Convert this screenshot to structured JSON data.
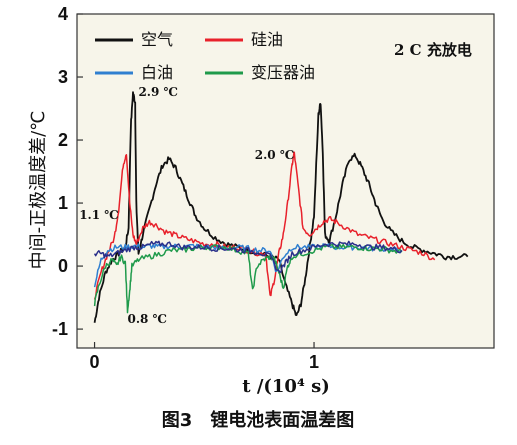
{
  "chart_data": {
    "type": "line",
    "xlabel": "t /(10⁴ s)",
    "ylabel": "中间-正极温度差/℃",
    "xlim": [
      -0.08,
      1.82
    ],
    "ylim": [
      -1.3,
      4.0
    ],
    "x_ticks": [
      {
        "value": 0,
        "label": "0"
      },
      {
        "value": 1,
        "label": "1"
      }
    ],
    "y_ticks": [
      {
        "value": -1,
        "label": "-1"
      },
      {
        "value": 0,
        "label": "0"
      },
      {
        "value": 1,
        "label": "1"
      },
      {
        "value": 2,
        "label": "2"
      },
      {
        "value": 3,
        "label": "3"
      },
      {
        "value": 4,
        "label": "4"
      }
    ],
    "grid": false,
    "legend_position": "top-left",
    "note": "2 C 充放电",
    "caption": "图3　锂电池表面温差图",
    "colors": {
      "background": "#f7f5ea",
      "black": "#111111",
      "red": "#e8212b",
      "blue": "#2f7fd0",
      "green": "#1f9a4b",
      "navy": "#2a2f8a"
    },
    "annotations": [
      {
        "text": "2.9 ℃",
        "x": 0.2,
        "y": 2.7
      },
      {
        "text": "2.0 ℃",
        "x": 0.73,
        "y": 1.7
      },
      {
        "text": "1.1 ℃",
        "x": -0.07,
        "y": 0.75
      },
      {
        "text": "0.8 ℃",
        "x": 0.15,
        "y": -0.9
      }
    ],
    "series": [
      {
        "name": "空气",
        "color": "#111111",
        "points": [
          [
            0,
            -0.9
          ],
          [
            0.02,
            -0.5
          ],
          [
            0.05,
            -0.1
          ],
          [
            0.08,
            0.1
          ],
          [
            0.11,
            0.2
          ],
          [
            0.14,
            0.3
          ],
          [
            0.155,
            0.6
          ],
          [
            0.165,
            2.2
          ],
          [
            0.175,
            2.75
          ],
          [
            0.185,
            2.6
          ],
          [
            0.19,
            1.0
          ],
          [
            0.2,
            0.2
          ],
          [
            0.22,
            0.5
          ],
          [
            0.25,
            0.9
          ],
          [
            0.28,
            1.3
          ],
          [
            0.31,
            1.6
          ],
          [
            0.34,
            1.7
          ],
          [
            0.37,
            1.55
          ],
          [
            0.4,
            1.3
          ],
          [
            0.43,
            1.05
          ],
          [
            0.46,
            0.8
          ],
          [
            0.5,
            0.6
          ],
          [
            0.55,
            0.45
          ],
          [
            0.6,
            0.35
          ],
          [
            0.65,
            0.3
          ],
          [
            0.7,
            0.25
          ],
          [
            0.75,
            0.2
          ],
          [
            0.8,
            0.15
          ],
          [
            0.84,
            0.1
          ],
          [
            0.87,
            -0.3
          ],
          [
            0.9,
            -0.6
          ],
          [
            0.92,
            -0.8
          ],
          [
            0.94,
            -0.6
          ],
          [
            0.96,
            -0.2
          ],
          [
            0.98,
            0.3
          ],
          [
            1.0,
            0.8
          ],
          [
            1.02,
            2.4
          ],
          [
            1.03,
            2.6
          ],
          [
            1.04,
            1.8
          ],
          [
            1.05,
            0.5
          ],
          [
            1.07,
            0.4
          ],
          [
            1.1,
            0.8
          ],
          [
            1.13,
            1.3
          ],
          [
            1.16,
            1.7
          ],
          [
            1.19,
            1.75
          ],
          [
            1.22,
            1.55
          ],
          [
            1.25,
            1.3
          ],
          [
            1.28,
            1.0
          ],
          [
            1.31,
            0.75
          ],
          [
            1.35,
            0.55
          ],
          [
            1.4,
            0.4
          ],
          [
            1.45,
            0.3
          ],
          [
            1.5,
            0.25
          ],
          [
            1.55,
            0.2
          ],
          [
            1.6,
            0.15
          ],
          [
            1.65,
            0.15
          ],
          [
            1.7,
            0.15
          ]
        ]
      },
      {
        "name": "硅油",
        "color": "#e8212b",
        "points": [
          [
            0,
            -0.5
          ],
          [
            0.03,
            -0.1
          ],
          [
            0.06,
            0.2
          ],
          [
            0.09,
            0.45
          ],
          [
            0.11,
            0.9
          ],
          [
            0.13,
            1.6
          ],
          [
            0.145,
            1.8
          ],
          [
            0.16,
            1.0
          ],
          [
            0.175,
            0.5
          ],
          [
            0.19,
            0.35
          ],
          [
            0.22,
            0.6
          ],
          [
            0.25,
            0.7
          ],
          [
            0.28,
            0.65
          ],
          [
            0.32,
            0.55
          ],
          [
            0.36,
            0.5
          ],
          [
            0.4,
            0.45
          ],
          [
            0.45,
            0.4
          ],
          [
            0.5,
            0.35
          ],
          [
            0.55,
            0.35
          ],
          [
            0.6,
            0.3
          ],
          [
            0.65,
            0.3
          ],
          [
            0.7,
            0.25
          ],
          [
            0.75,
            0.2
          ],
          [
            0.78,
            0.2
          ],
          [
            0.8,
            -0.5
          ],
          [
            0.82,
            -0.2
          ],
          [
            0.84,
            0.2
          ],
          [
            0.86,
            0.5
          ],
          [
            0.88,
            1.0
          ],
          [
            0.9,
            1.6
          ],
          [
            0.91,
            1.8
          ],
          [
            0.93,
            1.2
          ],
          [
            0.95,
            0.6
          ],
          [
            0.98,
            0.5
          ],
          [
            1.01,
            0.6
          ],
          [
            1.04,
            0.7
          ],
          [
            1.07,
            0.75
          ],
          [
            1.1,
            0.7
          ],
          [
            1.15,
            0.6
          ],
          [
            1.2,
            0.5
          ],
          [
            1.25,
            0.45
          ],
          [
            1.3,
            0.4
          ],
          [
            1.35,
            0.35
          ],
          [
            1.4,
            0.3
          ],
          [
            1.45,
            0.25
          ],
          [
            1.5,
            0.2
          ],
          [
            1.55,
            0.1
          ]
        ]
      },
      {
        "name": "白油",
        "color": "#2f7fd0",
        "points": [
          [
            0,
            -0.3
          ],
          [
            0.03,
            0.1
          ],
          [
            0.06,
            0.25
          ],
          [
            0.1,
            0.3
          ],
          [
            0.14,
            0.3
          ],
          [
            0.18,
            0.32
          ],
          [
            0.22,
            0.3
          ],
          [
            0.26,
            0.32
          ],
          [
            0.3,
            0.3
          ],
          [
            0.35,
            0.32
          ],
          [
            0.4,
            0.3
          ],
          [
            0.45,
            0.32
          ],
          [
            0.5,
            0.3
          ],
          [
            0.55,
            0.3
          ],
          [
            0.6,
            0.28
          ],
          [
            0.65,
            0.3
          ],
          [
            0.7,
            0.28
          ],
          [
            0.75,
            0.25
          ],
          [
            0.8,
            0.25
          ],
          [
            0.83,
            -0.1
          ],
          [
            0.86,
            0.15
          ],
          [
            0.9,
            0.3
          ],
          [
            0.95,
            0.3
          ],
          [
            1.0,
            0.3
          ],
          [
            1.05,
            0.32
          ],
          [
            1.1,
            0.3
          ],
          [
            1.15,
            0.3
          ],
          [
            1.2,
            0.3
          ],
          [
            1.25,
            0.28
          ],
          [
            1.3,
            0.28
          ],
          [
            1.35,
            0.25
          ],
          [
            1.4,
            0.25
          ]
        ]
      },
      {
        "name": "变压器油",
        "color": "#1f9a4b",
        "points": [
          [
            0,
            -0.6
          ],
          [
            0.02,
            -0.3
          ],
          [
            0.05,
            0.0
          ],
          [
            0.08,
            0.1
          ],
          [
            0.1,
            0.0
          ],
          [
            0.12,
            0.15
          ],
          [
            0.14,
            0.05
          ],
          [
            0.15,
            -0.7
          ],
          [
            0.16,
            -0.4
          ],
          [
            0.17,
            0.0
          ],
          [
            0.2,
            0.1
          ],
          [
            0.25,
            0.15
          ],
          [
            0.3,
            0.2
          ],
          [
            0.35,
            0.25
          ],
          [
            0.4,
            0.25
          ],
          [
            0.45,
            0.28
          ],
          [
            0.5,
            0.3
          ],
          [
            0.55,
            0.3
          ],
          [
            0.6,
            0.3
          ],
          [
            0.65,
            0.25
          ],
          [
            0.7,
            0.2
          ],
          [
            0.72,
            -0.4
          ],
          [
            0.74,
            0.0
          ],
          [
            0.77,
            0.1
          ],
          [
            0.8,
            0.15
          ],
          [
            0.82,
            0.1
          ],
          [
            0.84,
            -0.1
          ],
          [
            0.86,
            -0.35
          ],
          [
            0.88,
            0.0
          ],
          [
            0.9,
            0.15
          ],
          [
            0.95,
            0.2
          ],
          [
            1.0,
            0.25
          ],
          [
            1.05,
            0.3
          ],
          [
            1.1,
            0.3
          ],
          [
            1.15,
            0.3
          ],
          [
            1.2,
            0.3
          ],
          [
            1.25,
            0.28
          ],
          [
            1.3,
            0.28
          ],
          [
            1.35,
            0.25
          ],
          [
            1.4,
            0.22
          ]
        ]
      },
      {
        "name": "",
        "color": "#2a2f8a",
        "points": [
          [
            0,
            0.2
          ],
          [
            0.03,
            0.2
          ],
          [
            0.06,
            0.15
          ],
          [
            0.1,
            0.2
          ],
          [
            0.14,
            0.25
          ],
          [
            0.18,
            0.3
          ],
          [
            0.22,
            0.3
          ],
          [
            0.26,
            0.35
          ],
          [
            0.3,
            0.35
          ],
          [
            0.35,
            0.35
          ],
          [
            0.4,
            0.3
          ],
          [
            0.45,
            0.3
          ],
          [
            0.5,
            0.3
          ],
          [
            0.55,
            0.28
          ],
          [
            0.6,
            0.28
          ],
          [
            0.65,
            0.26
          ],
          [
            0.7,
            0.25
          ],
          [
            0.75,
            0.22
          ],
          [
            0.8,
            0.15
          ],
          [
            0.84,
            -0.1
          ],
          [
            0.87,
            0.05
          ],
          [
            0.9,
            0.2
          ],
          [
            0.95,
            0.25
          ],
          [
            1.0,
            0.3
          ],
          [
            1.05,
            0.35
          ],
          [
            1.1,
            0.35
          ],
          [
            1.15,
            0.35
          ],
          [
            1.2,
            0.35
          ],
          [
            1.25,
            0.3
          ],
          [
            1.3,
            0.3
          ],
          [
            1.35,
            0.28
          ],
          [
            1.4,
            0.25
          ]
        ]
      }
    ]
  }
}
